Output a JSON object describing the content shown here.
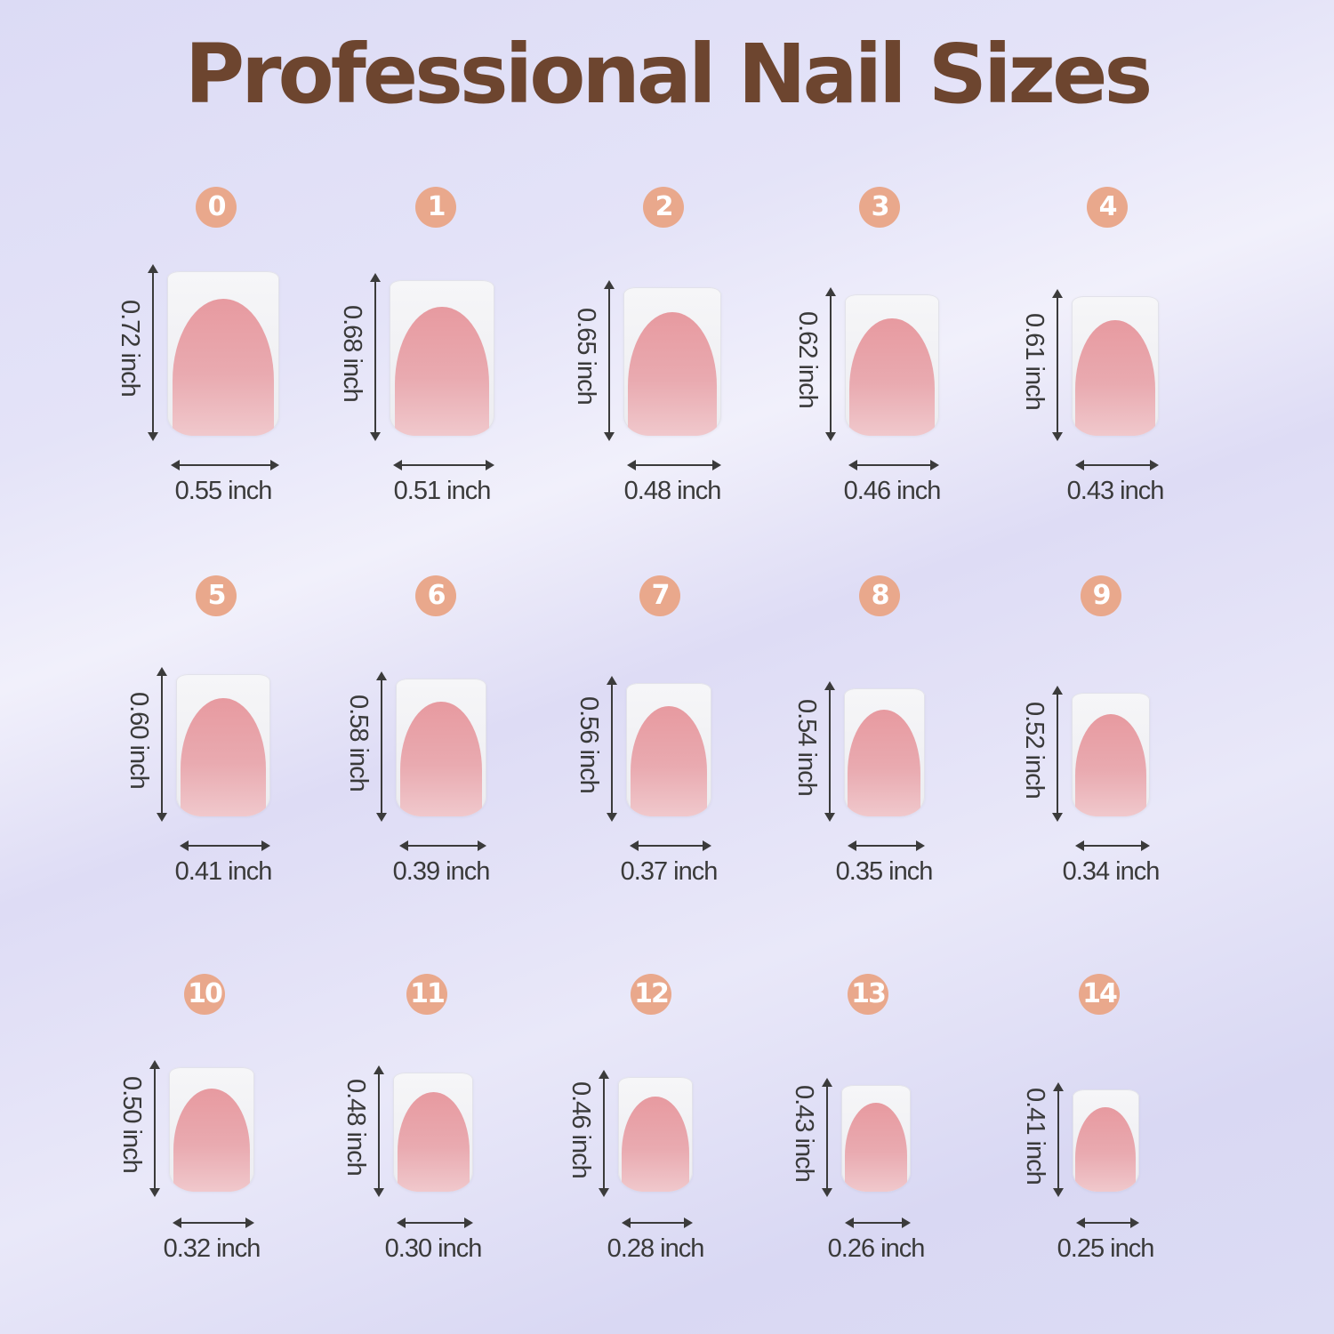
{
  "title": "Professional Nail Sizes",
  "colors": {
    "title": "#6d452f",
    "badge": "#e9a88c",
    "nail_bed": "#e79aa0",
    "background": "#dcdbf5"
  },
  "nails": [
    {
      "number": "0",
      "height": "0.72 inch",
      "width": "0.55 inch"
    },
    {
      "number": "1",
      "height": "0.68 inch",
      "width": "0.51 inch"
    },
    {
      "number": "2",
      "height": "0.65 inch",
      "width": "0.48 inch"
    },
    {
      "number": "3",
      "height": "0.62 inch",
      "width": "0.46 inch"
    },
    {
      "number": "4",
      "height": "0.61 inch",
      "width": "0.43 inch"
    },
    {
      "number": "5",
      "height": "0.60 inch",
      "width": "0.41 inch"
    },
    {
      "number": "6",
      "height": "0.58 inch",
      "width": "0.39 inch"
    },
    {
      "number": "7",
      "height": "0.56 inch",
      "width": "0.37 inch"
    },
    {
      "number": "8",
      "height": "0.54 inch",
      "width": "0.35 inch"
    },
    {
      "number": "9",
      "height": "0.52 inch",
      "width": "0.34 inch"
    },
    {
      "number": "10",
      "height": "0.50 inch",
      "width": "0.32 inch"
    },
    {
      "number": "11",
      "height": "0.48 inch",
      "width": "0.30 inch"
    },
    {
      "number": "12",
      "height": "0.46 inch",
      "width": "0.28 inch"
    },
    {
      "number": "13",
      "height": "0.43 inch",
      "width": "0.26 inch"
    },
    {
      "number": "14",
      "height": "0.41 inch",
      "width": "0.25 inch"
    }
  ]
}
